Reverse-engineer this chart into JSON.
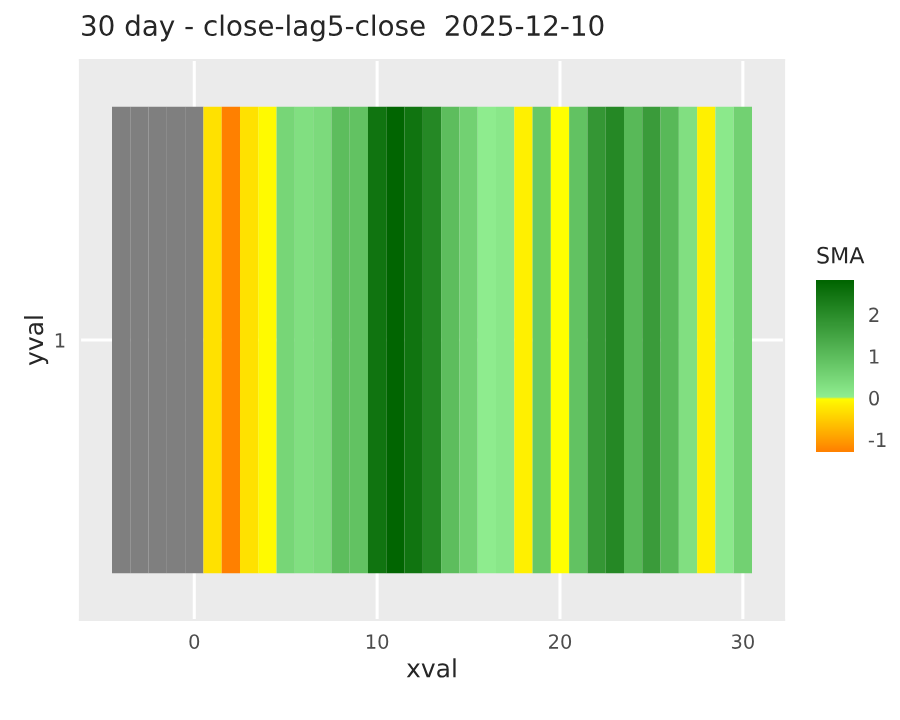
{
  "chart_data": {
    "type": "heatmap",
    "title": "30 day - close-lag5-close  2025-12-10",
    "xlabel": "xval",
    "ylabel": "yval",
    "clabel": "SMA",
    "x": [
      -4,
      -3,
      -2,
      -1,
      0,
      1,
      2,
      3,
      4,
      5,
      6,
      7,
      8,
      9,
      10,
      11,
      12,
      13,
      14,
      15,
      16,
      17,
      18,
      19,
      20,
      21,
      22,
      23,
      24,
      25,
      26,
      27,
      28,
      29,
      30
    ],
    "y_categories": [
      "1"
    ],
    "cells": [
      [
        null,
        null,
        null,
        null,
        null,
        -0.3,
        -1.3,
        -0.3,
        -0.05,
        0.5,
        0.3,
        0.4,
        1.0,
        0.9,
        2.5,
        2.8,
        2.5,
        2.1,
        1.0,
        0.6,
        0.05,
        0.15,
        -0.15,
        0.8,
        0.0,
        0.9,
        1.8,
        2.1,
        1.1,
        1.7,
        1.1,
        0.3,
        -0.15,
        0.1,
        0.6
      ]
    ],
    "xlim": [
      -6.25,
      32.25
    ],
    "xticks": [
      0,
      10,
      20,
      30
    ],
    "clim": [
      -1.3,
      2.83
    ],
    "cticks": [
      -1,
      0,
      1,
      2
    ],
    "grid": true
  }
}
